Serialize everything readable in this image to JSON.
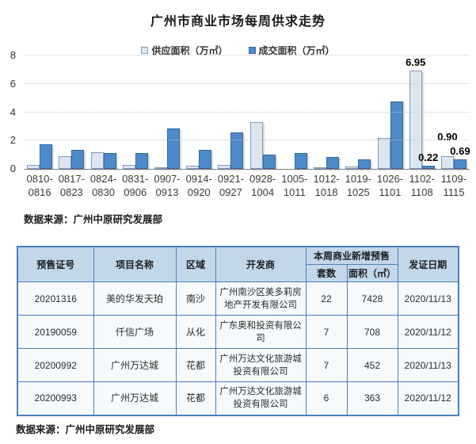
{
  "chart_data": {
    "type": "bar",
    "title": "广州市商业市场每周供求走势",
    "categories": [
      "0810-0816",
      "0817-0823",
      "0824-0830",
      "0831-0906",
      "0907-0913",
      "0914-0920",
      "0921-0927",
      "0928-1004",
      "1005-1011",
      "1012-1018",
      "1019-1025",
      "1026-1101",
      "1102-1108",
      "1109-1115"
    ],
    "series": [
      {
        "name": "供应面积（万㎡）",
        "color": "#dce6f2",
        "border_color": "#7f9db9",
        "values": [
          0.3,
          0.9,
          1.15,
          0.3,
          0.1,
          0.2,
          0.3,
          3.3,
          0,
          0.05,
          0.15,
          2.2,
          6.95,
          0.9
        ],
        "point_labels": [
          "",
          "",
          "",
          "",
          "",
          "",
          "",
          "",
          "",
          "",
          "",
          "",
          "6.95",
          "0.90"
        ]
      },
      {
        "name": "成交面积（万㎡）",
        "color": "#4e8ac8",
        "border_color": "#38689e",
        "values": [
          1.75,
          1.35,
          1.1,
          1.1,
          2.85,
          1.35,
          2.6,
          1.0,
          1.1,
          0.85,
          0.7,
          4.75,
          0.22,
          0.69
        ],
        "point_labels": [
          "",
          "",
          "",
          "",
          "",
          "",
          "",
          "",
          "",
          "",
          "",
          "",
          "0.22",
          "0.69"
        ]
      }
    ],
    "ylim": [
      0,
      8
    ],
    "yticks": [
      0,
      2,
      4,
      6,
      8
    ],
    "grid": "horizontal-dotted",
    "legend_position": "top"
  },
  "chart": {
    "source_note": "数据来源：广州中原研究发展部"
  },
  "table": {
    "headers": {
      "certificate_no": "预售证号",
      "project": "项目名称",
      "district": "区域",
      "developer": "开发商",
      "weekly_group": "本周商业新增预售",
      "units": "套数",
      "area": "面积（㎡）",
      "issue_date": "发证日期"
    },
    "rows": [
      {
        "certificate_no": "20201316",
        "project": "美的华发天珀",
        "district": "南沙",
        "developer": "广州南沙区美多莉房地产开发有限公司",
        "units": "22",
        "area": "7428",
        "issue_date": "2020/11/13"
      },
      {
        "certificate_no": "20190059",
        "project": "仟信广场",
        "district": "从化",
        "developer": "广东奥和投资有限公司",
        "units": "7",
        "area": "708",
        "issue_date": "2020/11/12"
      },
      {
        "certificate_no": "20200992",
        "project": "广州万达城",
        "district": "花都",
        "developer": "广州万达文化旅游城投资有限公司",
        "units": "7",
        "area": "452",
        "issue_date": "2020/11/13"
      },
      {
        "certificate_no": "20200993",
        "project": "广州万达城",
        "district": "花都",
        "developer": "广州万达文化旅游城投资有限公司",
        "units": "6",
        "area": "363",
        "issue_date": "2020/11/12"
      }
    ],
    "source_note": "数据来源：广州中原研究发展部"
  }
}
